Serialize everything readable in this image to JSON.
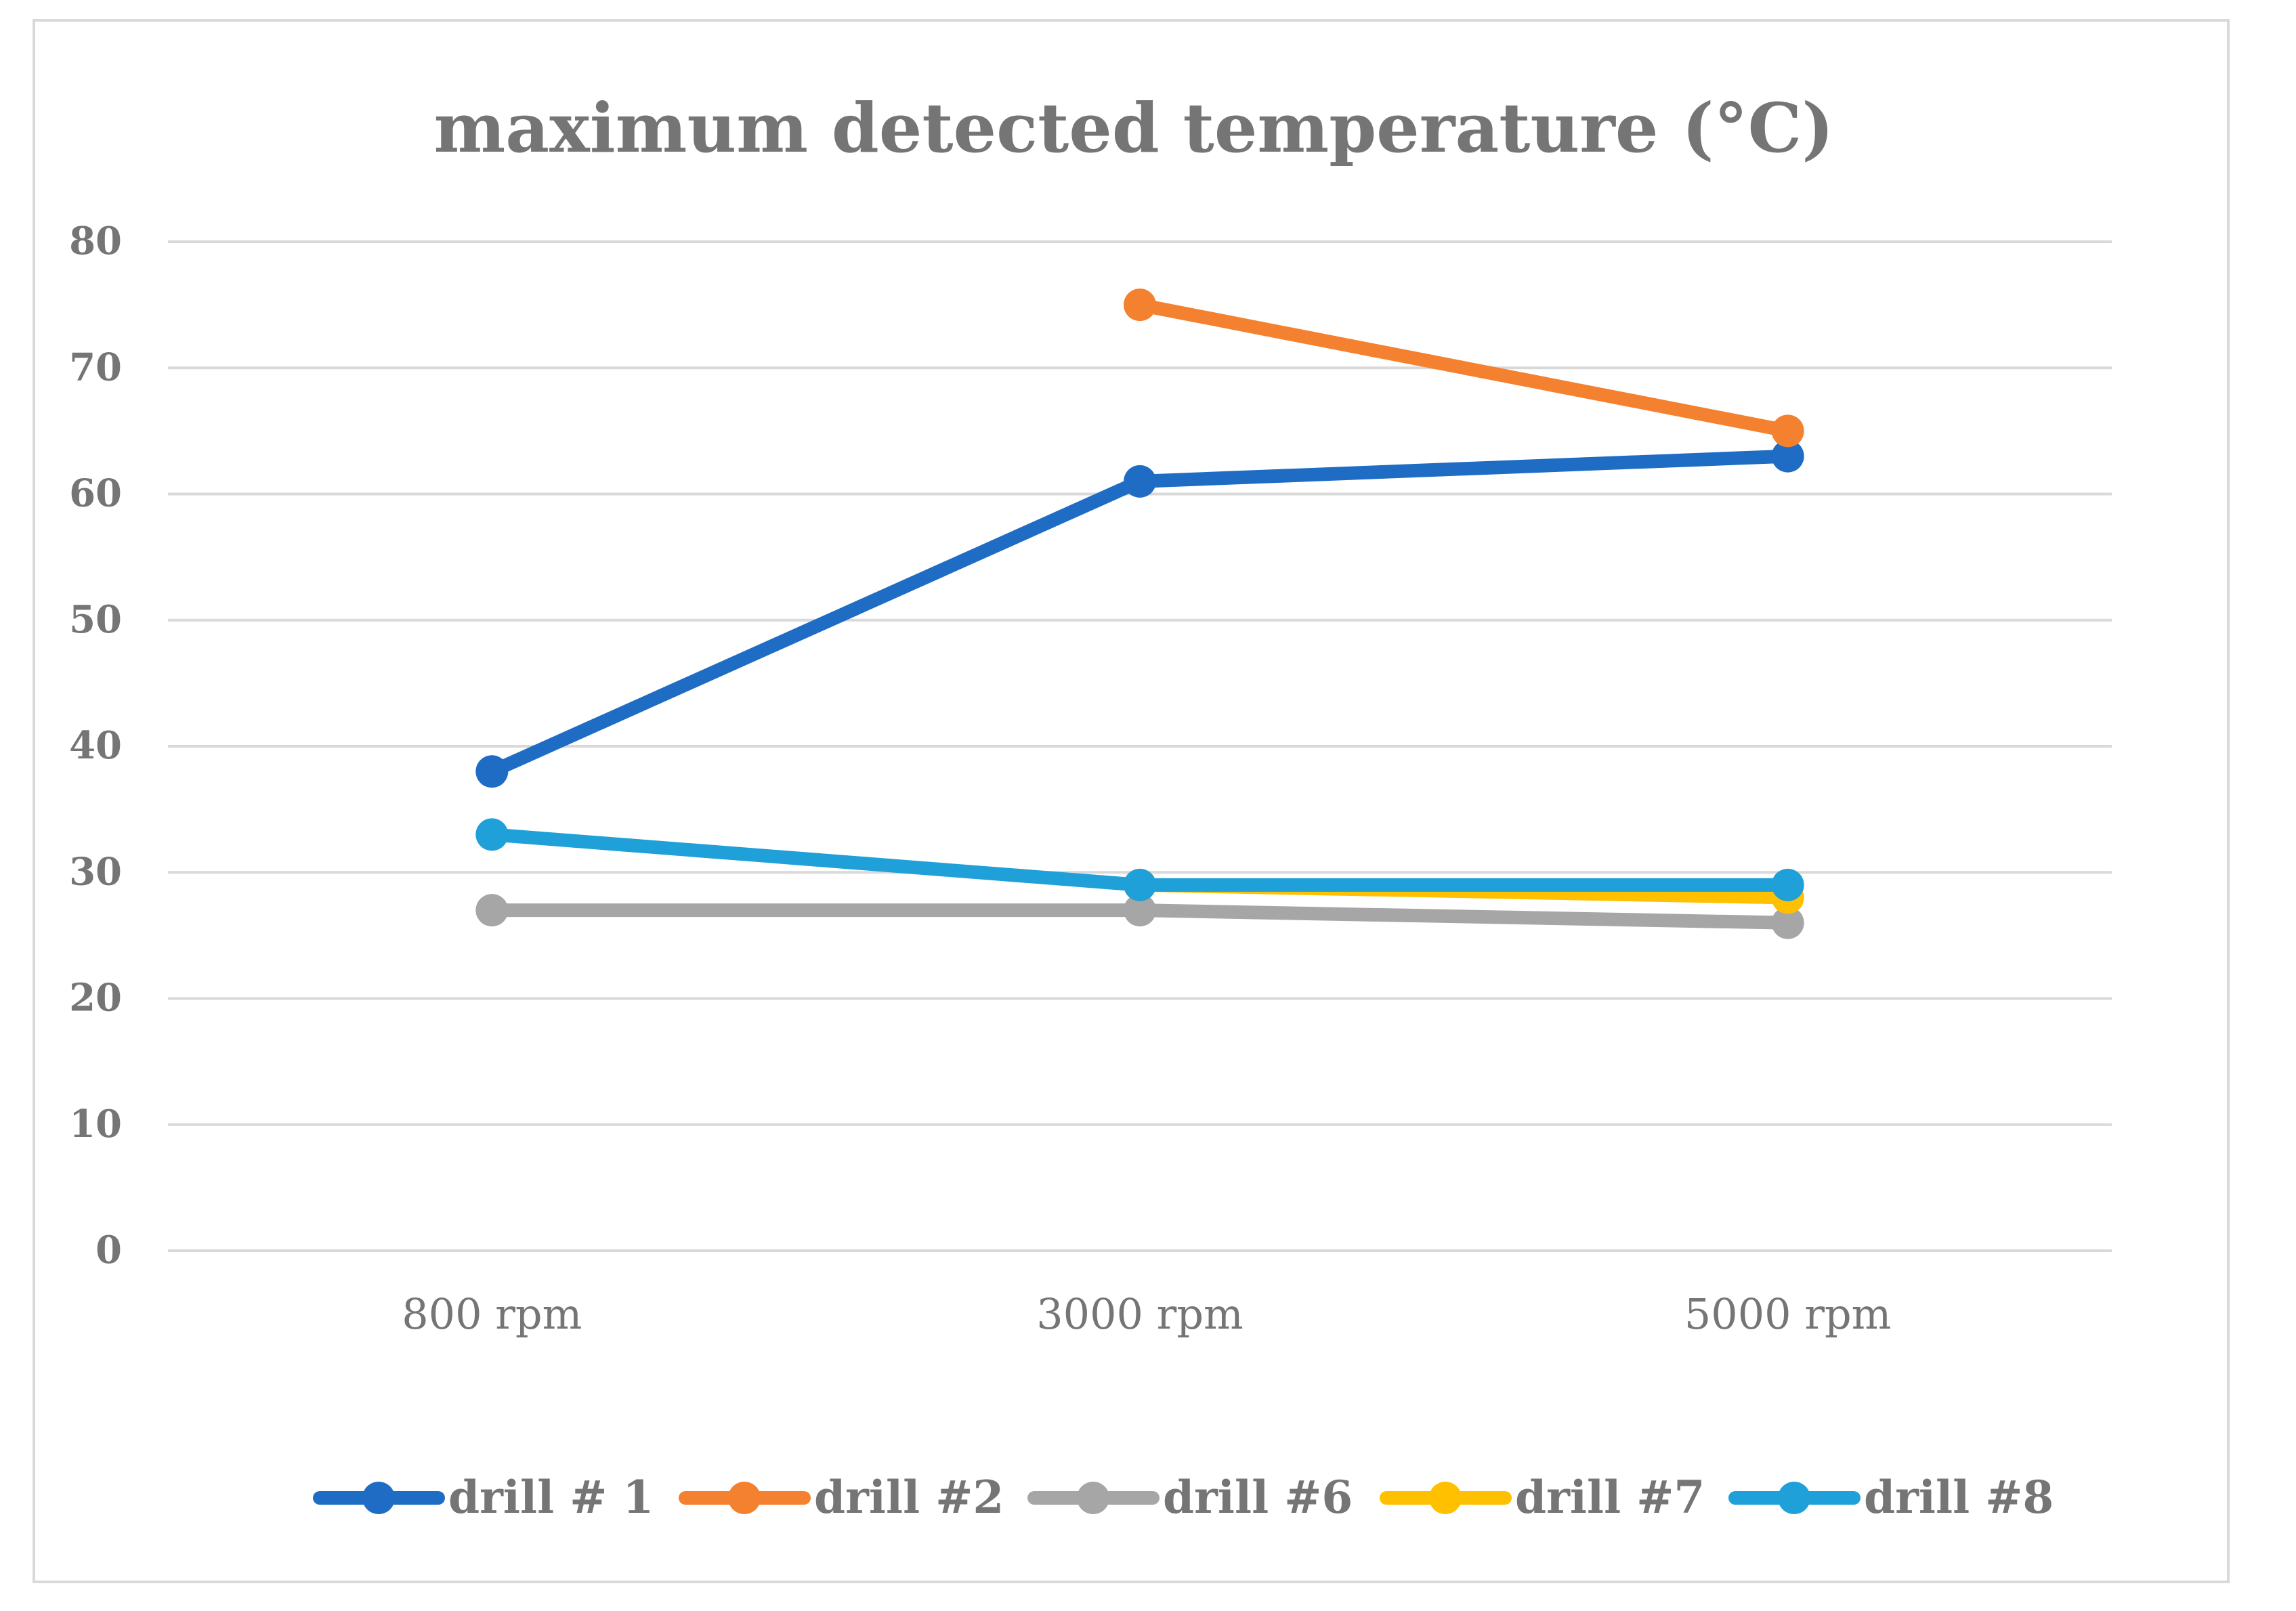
{
  "chart_data": {
    "type": "line",
    "title": "maximum detected temperature (°C)",
    "xlabel": "",
    "ylabel": "",
    "categories": [
      "800 rpm",
      "3000 rpm",
      "5000 rpm"
    ],
    "ylim": [
      0,
      80
    ],
    "yticks": [
      0,
      10,
      20,
      30,
      40,
      50,
      60,
      70,
      80
    ],
    "grid": true,
    "legend_position": "bottom",
    "series": [
      {
        "name": "drill # 1",
        "color": "#1f6cc4",
        "values": [
          38,
          61,
          63
        ]
      },
      {
        "name": "drill #2",
        "color": "#f4812f",
        "values": [
          null,
          75,
          65
        ]
      },
      {
        "name": "drill #6",
        "color": "#a6a6a6",
        "values": [
          27,
          27,
          26
        ]
      },
      {
        "name": "drill #7",
        "color": "#ffc000",
        "values": [
          null,
          29,
          28
        ]
      },
      {
        "name": "drill #8",
        "color": "#1fa0d8",
        "values": [
          33,
          29,
          29
        ]
      }
    ]
  }
}
